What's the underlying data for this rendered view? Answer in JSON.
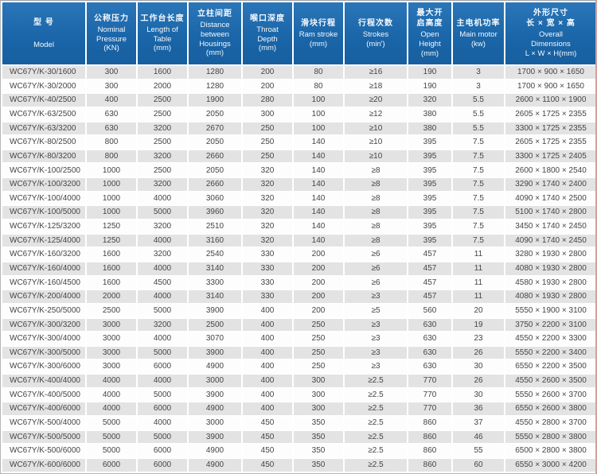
{
  "colors": {
    "header_blue": "#1a66a9",
    "row_gray": "#e3e3e3",
    "row_white": "#fdfdfd",
    "header_text": "#ffffff",
    "body_text": "#454545"
  },
  "table": {
    "columns": [
      {
        "zh": "型 号",
        "en": "Model"
      },
      {
        "zh": "公称压力",
        "en": "Nominal\nPressure\n(KN)"
      },
      {
        "zh": "工作台长度",
        "en": "Length of\nTable\n(mm)"
      },
      {
        "zh": "立柱间距",
        "en": "Distance\nbetween\nHousings\n(mm)"
      },
      {
        "zh": "喉口深度",
        "en": "Throat\nDepth\n(mm)"
      },
      {
        "zh": "滑块行程",
        "en": "Ram stroke\n(mm)"
      },
      {
        "zh": "行程次数",
        "en": "Strokes\n(min')"
      },
      {
        "zh": "最大开\n启高度",
        "en": "Open\nHeight\n(mm)"
      },
      {
        "zh": "主电机功率",
        "en": "Main motor\n(kw)"
      },
      {
        "zh": "外形尺寸\n长 × 宽 × 高",
        "en": "Overall\nDimensions\nL × W × H(mm)"
      }
    ],
    "rows": [
      [
        "WC67Y/K-30/1600",
        "300",
        "1600",
        "1280",
        "200",
        "80",
        "≥16",
        "190",
        "3",
        "1700 × 900 × 1650"
      ],
      [
        "WC67Y/K-30/2000",
        "300",
        "2000",
        "1280",
        "200",
        "80",
        "≥18",
        "190",
        "3",
        "1700 × 900 × 1650"
      ],
      [
        "WC67Y/K-40/2500",
        "400",
        "2500",
        "1900",
        "280",
        "100",
        "≥20",
        "320",
        "5.5",
        "2600 × 1100 × 1900"
      ],
      [
        "WC67Y/K-63/2500",
        "630",
        "2500",
        "2050",
        "300",
        "100",
        "≥12",
        "380",
        "5.5",
        "2605 × 1725 × 2355"
      ],
      [
        "WC67Y/K-63/3200",
        "630",
        "3200",
        "2670",
        "250",
        "100",
        "≥10",
        "380",
        "5.5",
        "3300 × 1725 × 2355"
      ],
      [
        "WC67Y/K-80/2500",
        "800",
        "2500",
        "2050",
        "250",
        "140",
        "≥10",
        "395",
        "7.5",
        "2605 × 1725 × 2355"
      ],
      [
        "WC67Y/K-80/3200",
        "800",
        "3200",
        "2660",
        "250",
        "140",
        "≥10",
        "395",
        "7.5",
        "3300 × 1725 × 2405"
      ],
      [
        "WC67Y/K-100/2500",
        "1000",
        "2500",
        "2050",
        "320",
        "140",
        "≥8",
        "395",
        "7.5",
        "2600 × 1800 × 2540"
      ],
      [
        "WC67Y/K-100/3200",
        "1000",
        "3200",
        "2660",
        "320",
        "140",
        "≥8",
        "395",
        "7.5",
        "3290 × 1740 × 2400"
      ],
      [
        "WC67Y/K-100/4000",
        "1000",
        "4000",
        "3060",
        "320",
        "140",
        "≥8",
        "395",
        "7.5",
        "4090 × 1740 × 2500"
      ],
      [
        "WC67Y/K-100/5000",
        "1000",
        "5000",
        "3960",
        "320",
        "140",
        "≥8",
        "395",
        "7.5",
        "5100 × 1740 × 2800"
      ],
      [
        "WC67Y/K-125/3200",
        "1250",
        "3200",
        "2510",
        "320",
        "140",
        "≥8",
        "395",
        "7.5",
        "3450 × 1740 × 2450"
      ],
      [
        "WC67Y/K-125/4000",
        "1250",
        "4000",
        "3160",
        "320",
        "140",
        "≥8",
        "395",
        "7.5",
        "4090 × 1740 × 2450"
      ],
      [
        "WC67Y/K-160/3200",
        "1600",
        "3200",
        "2540",
        "330",
        "200",
        "≥6",
        "457",
        "11",
        "3280 × 1930 × 2800"
      ],
      [
        "WC67Y/K-160/4000",
        "1600",
        "4000",
        "3140",
        "330",
        "200",
        "≥6",
        "457",
        "11",
        "4080 × 1930 × 2800"
      ],
      [
        "WC67Y/K-160/4500",
        "1600",
        "4500",
        "3300",
        "330",
        "200",
        "≥6",
        "457",
        "11",
        "4580 × 1930 × 2800"
      ],
      [
        "WC67Y/K-200/4000",
        "2000",
        "4000",
        "3140",
        "330",
        "200",
        "≥3",
        "457",
        "11",
        "4080 × 1930 × 2800"
      ],
      [
        "WC67Y/K-250/5000",
        "2500",
        "5000",
        "3900",
        "400",
        "200",
        "≥5",
        "560",
        "20",
        "5550 × 1900 × 3100"
      ],
      [
        "WC67Y/K-300/3200",
        "3000",
        "3200",
        "2500",
        "400",
        "250",
        "≥3",
        "630",
        "19",
        "3750 × 2200 × 3100"
      ],
      [
        "WC67Y/K-300/4000",
        "3000",
        "4000",
        "3070",
        "400",
        "250",
        "≥3",
        "630",
        "23",
        "4550 × 2200 × 3300"
      ],
      [
        "WC67Y/K-300/5000",
        "3000",
        "5000",
        "3900",
        "400",
        "250",
        "≥3",
        "630",
        "26",
        "5550 × 2200 × 3400"
      ],
      [
        "WC67Y/K-300/6000",
        "3000",
        "6000",
        "4900",
        "400",
        "250",
        "≥3",
        "630",
        "30",
        "6550 × 2200 × 3500"
      ],
      [
        "WC67Y/K-400/4000",
        "4000",
        "4000",
        "3000",
        "400",
        "300",
        "≥2.5",
        "770",
        "26",
        "4550 × 2600 × 3500"
      ],
      [
        "WC67Y/K-400/5000",
        "4000",
        "5000",
        "3900",
        "400",
        "300",
        "≥2.5",
        "770",
        "30",
        "5550 × 2600 × 3700"
      ],
      [
        "WC67Y/K-400/6000",
        "4000",
        "6000",
        "4900",
        "400",
        "300",
        "≥2.5",
        "770",
        "36",
        "6550 × 2600 × 3800"
      ],
      [
        "WC67Y/K-500/4000",
        "5000",
        "4000",
        "3000",
        "450",
        "350",
        "≥2.5",
        "860",
        "37",
        "4550 × 2800 × 3700"
      ],
      [
        "WC67Y/K-500/5000",
        "5000",
        "5000",
        "3900",
        "450",
        "350",
        "≥2.5",
        "860",
        "46",
        "5550 × 2800 × 3800"
      ],
      [
        "WC67Y/K-500/6000",
        "5000",
        "6000",
        "4900",
        "450",
        "350",
        "≥2.5",
        "860",
        "55",
        "6500 × 2800 × 3800"
      ],
      [
        "WC67Y/K-600/6000",
        "6000",
        "6000",
        "4900",
        "450",
        "350",
        "≥2.5",
        "860",
        "60",
        "6550 × 3000 × 4200"
      ]
    ]
  }
}
